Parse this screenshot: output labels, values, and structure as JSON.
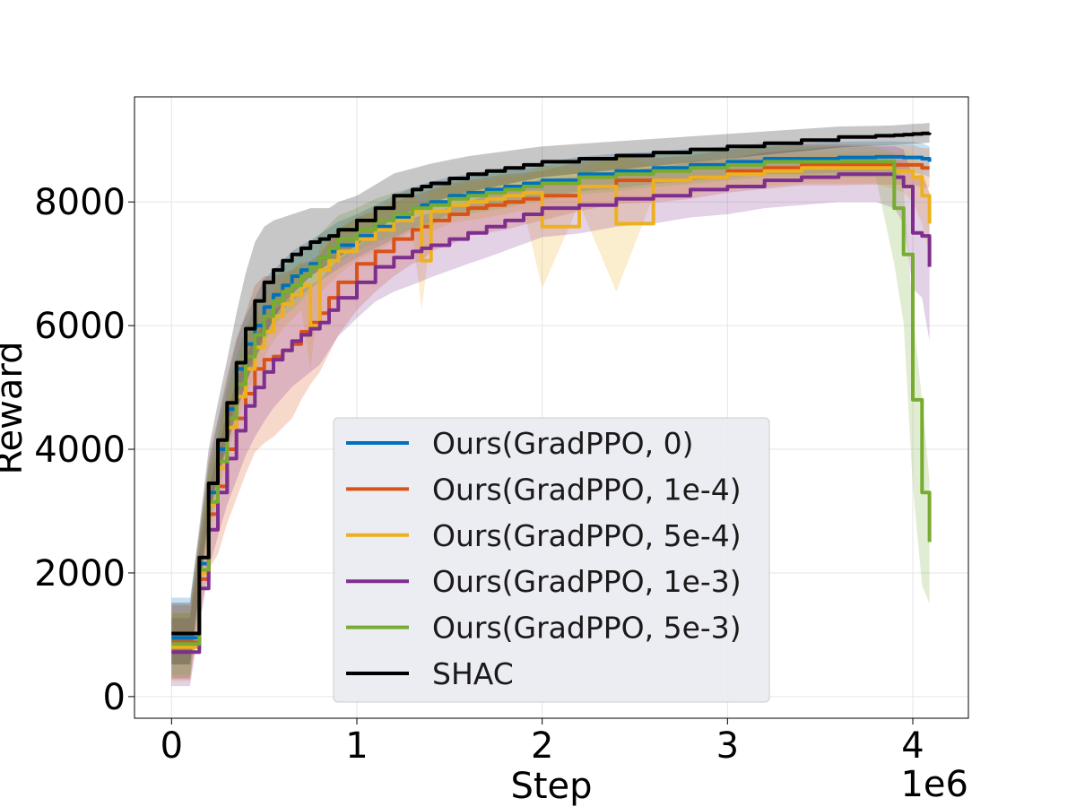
{
  "chart_data": {
    "type": "line",
    "title": "",
    "xlabel": "Step",
    "ylabel": "Reward",
    "x_offset_label": "1e6",
    "xlim": [
      -0.2,
      4.3
    ],
    "ylim": [
      -350,
      9700
    ],
    "xticks": [
      0,
      1,
      2,
      3,
      4
    ],
    "xtick_labels": [
      "0",
      "1",
      "2",
      "3",
      "4"
    ],
    "yticks": [
      0,
      2000,
      4000,
      6000,
      8000
    ],
    "ytick_labels": [
      "0",
      "2000",
      "4000",
      "6000",
      "8000"
    ],
    "grid": true,
    "shaded_band": "±std",
    "legend_position": "lower-center",
    "x": [
      0,
      0.1,
      0.15,
      0.2,
      0.25,
      0.3,
      0.35,
      0.4,
      0.45,
      0.5,
      0.55,
      0.6,
      0.65,
      0.7,
      0.75,
      0.8,
      0.85,
      0.9,
      1.0,
      1.1,
      1.2,
      1.3,
      1.35,
      1.4,
      1.5,
      1.6,
      1.7,
      1.8,
      1.9,
      2.0,
      2.2,
      2.4,
      2.6,
      2.8,
      3.0,
      3.2,
      3.4,
      3.6,
      3.8,
      3.9,
      3.95,
      4.0,
      4.05,
      4.09
    ],
    "series": [
      {
        "name": "Ours(GradPPO, 0)",
        "color": "#0072bd",
        "values": [
          950,
          950,
          2150,
          3300,
          4000,
          4650,
          5300,
          5700,
          6000,
          6300,
          6500,
          6650,
          6800,
          6900,
          7000,
          7100,
          7200,
          7300,
          7450,
          7600,
          7750,
          7900,
          7950,
          8000,
          8100,
          8150,
          8200,
          8250,
          8300,
          8350,
          8450,
          8500,
          8550,
          8600,
          8650,
          8700,
          8700,
          8720,
          8730,
          8730,
          8720,
          8720,
          8700,
          8650
        ],
        "std": [
          650,
          650,
          500,
          450,
          450,
          450,
          450,
          450,
          450,
          450,
          400,
          400,
          400,
          400,
          380,
          380,
          380,
          380,
          350,
          350,
          350,
          330,
          330,
          330,
          300,
          300,
          300,
          300,
          280,
          280,
          280,
          280,
          260,
          260,
          250,
          250,
          250,
          250,
          250,
          250,
          250,
          250,
          250,
          250
        ]
      },
      {
        "name": "Ours(GradPPO, 1e-4)",
        "color": "#d95319",
        "values": [
          880,
          880,
          1900,
          2950,
          3400,
          4000,
          4500,
          4900,
          5300,
          5450,
          5500,
          5600,
          5700,
          5900,
          6050,
          6200,
          6450,
          6700,
          7000,
          7200,
          7400,
          7550,
          7600,
          7700,
          7800,
          7900,
          7950,
          8000,
          8050,
          8100,
          8250,
          8350,
          8350,
          8400,
          8500,
          8550,
          8600,
          8600,
          8600,
          8600,
          8600,
          8600,
          8550,
          8550
        ],
        "std": [
          600,
          600,
          700,
          900,
          1100,
          1200,
          1300,
          1300,
          1350,
          1350,
          1300,
          1250,
          1200,
          1100,
          1000,
          950,
          900,
          850,
          750,
          650,
          600,
          550,
          550,
          500,
          500,
          450,
          450,
          450,
          420,
          400,
          400,
          380,
          360,
          350,
          350,
          340,
          330,
          330,
          320,
          320,
          320,
          320,
          320,
          320
        ]
      },
      {
        "name": "Ours(GradPPO, 5e-4)",
        "color": "#edb120",
        "values": [
          800,
          800,
          2000,
          3100,
          3700,
          4350,
          4850,
          5300,
          5650,
          5900,
          6150,
          6350,
          6500,
          6650,
          6000,
          6900,
          7050,
          7200,
          7400,
          7550,
          7700,
          7850,
          7050,
          7850,
          7950,
          8000,
          8050,
          8100,
          8150,
          7600,
          8250,
          7650,
          8350,
          8400,
          8450,
          8500,
          8550,
          8550,
          8550,
          8500,
          8500,
          8400,
          8100,
          7650
        ],
        "std": [
          550,
          550,
          500,
          500,
          480,
          450,
          450,
          450,
          450,
          420,
          400,
          400,
          400,
          400,
          700,
          380,
          380,
          380,
          350,
          350,
          350,
          330,
          800,
          330,
          300,
          300,
          300,
          300,
          280,
          1000,
          280,
          1100,
          260,
          260,
          250,
          250,
          250,
          250,
          250,
          300,
          350,
          400,
          450,
          500
        ]
      },
      {
        "name": "Ours(GradPPO, 1e-3)",
        "color": "#7e2f8e",
        "values": [
          720,
          720,
          1750,
          2700,
          3300,
          3850,
          4300,
          4700,
          5000,
          5250,
          5450,
          5600,
          5750,
          5850,
          5950,
          6050,
          6250,
          6450,
          6700,
          6950,
          7100,
          7200,
          7250,
          7300,
          7400,
          7500,
          7600,
          7700,
          7800,
          7900,
          7950,
          8050,
          8100,
          8200,
          8250,
          8350,
          8400,
          8450,
          8450,
          8400,
          8250,
          7500,
          7450,
          6950
        ],
        "std": [
          550,
          550,
          600,
          650,
          700,
          750,
          800,
          800,
          800,
          800,
          780,
          760,
          740,
          720,
          700,
          680,
          650,
          620,
          580,
          560,
          550,
          540,
          530,
          520,
          510,
          500,
          500,
          490,
          480,
          470,
          460,
          450,
          450,
          450,
          450,
          450,
          450,
          450,
          450,
          500,
          600,
          900,
          1000,
          1200
        ]
      },
      {
        "name": "Ours(GradPPO, 5e-3)",
        "color": "#77ac30",
        "values": [
          850,
          850,
          2050,
          3150,
          3800,
          4500,
          5050,
          5500,
          5850,
          6150,
          6400,
          6550,
          6650,
          6800,
          6950,
          7100,
          7250,
          7400,
          7550,
          7700,
          7800,
          7900,
          7900,
          7950,
          8050,
          8100,
          8150,
          8200,
          8250,
          8300,
          8400,
          8450,
          8500,
          8550,
          8600,
          8650,
          8650,
          8650,
          8650,
          7900,
          7150,
          4800,
          3300,
          2500
        ],
        "std": [
          500,
          500,
          450,
          450,
          450,
          450,
          450,
          450,
          450,
          420,
          420,
          400,
          400,
          400,
          380,
          380,
          380,
          380,
          350,
          350,
          350,
          330,
          330,
          330,
          300,
          300,
          300,
          300,
          280,
          280,
          280,
          280,
          260,
          260,
          250,
          250,
          250,
          250,
          250,
          900,
          1100,
          1400,
          1500,
          1000
        ]
      },
      {
        "name": "SHAC",
        "color": "#000000",
        "values": [
          1020,
          1020,
          2250,
          3450,
          4150,
          4750,
          5400,
          5950,
          6400,
          6700,
          6900,
          7050,
          7150,
          7250,
          7350,
          7400,
          7450,
          7550,
          7700,
          7900,
          8100,
          8200,
          8250,
          8300,
          8380,
          8450,
          8500,
          8550,
          8600,
          8650,
          8700,
          8750,
          8800,
          8850,
          8900,
          8950,
          9000,
          9050,
          9070,
          9080,
          9090,
          9100,
          9110,
          9120
        ],
        "std": [
          500,
          500,
          500,
          550,
          600,
          700,
          800,
          900,
          950,
          900,
          800,
          700,
          650,
          600,
          550,
          500,
          450,
          450,
          400,
          380,
          360,
          340,
          330,
          320,
          300,
          290,
          280,
          270,
          260,
          250,
          240,
          230,
          220,
          210,
          200,
          190,
          180,
          170,
          160,
          160,
          160,
          160,
          160,
          160
        ]
      }
    ]
  }
}
